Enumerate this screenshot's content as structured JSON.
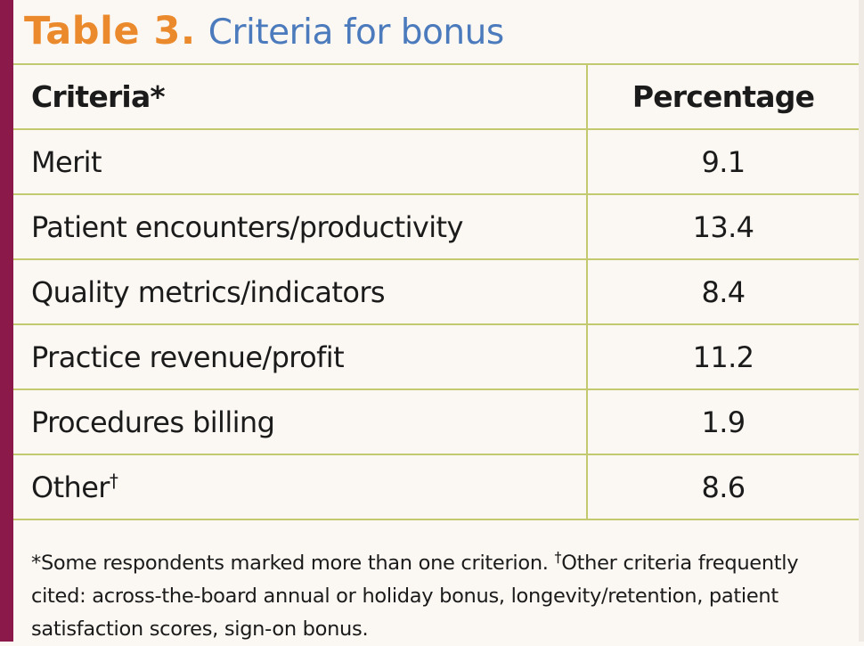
{
  "title": {
    "label": "Table 3.",
    "text": "Criteria for bonus"
  },
  "table": {
    "headers": {
      "criteria": "Criteria*",
      "percentage": "Percentage"
    },
    "rows": [
      {
        "criteria": "Merit",
        "marker": "",
        "percentage": "9.1"
      },
      {
        "criteria": "Patient encounters/productivity",
        "marker": "",
        "percentage": "13.4"
      },
      {
        "criteria": "Quality metrics/indicators",
        "marker": "",
        "percentage": "8.4"
      },
      {
        "criteria": "Practice revenue/profit",
        "marker": "",
        "percentage": "11.2"
      },
      {
        "criteria": "Procedures billing",
        "marker": "",
        "percentage": "1.9"
      },
      {
        "criteria": "Other",
        "marker": "†",
        "percentage": "8.6"
      }
    ]
  },
  "footnote": {
    "part1": "*Some respondents marked more than one criterion. ",
    "dagger": "†",
    "part2": "Other criteria frequently cited: across-the-board annual or holiday bonus, longevity/retention, patient satisfaction scores, sign-on bonus."
  },
  "colors": {
    "accent_bar": "#8b1a4a",
    "title_label": "#eb8a2d",
    "title_text": "#4b7bbd",
    "rule": "#c3c96f",
    "background": "#fbf7f2"
  }
}
